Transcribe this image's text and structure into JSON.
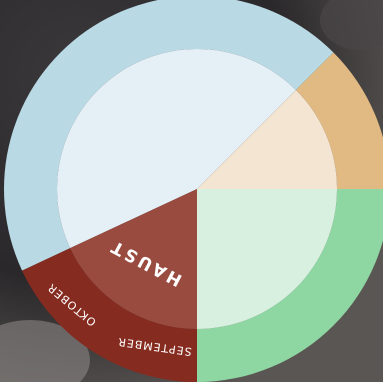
{
  "wheel": {
    "seasons": [
      {
        "id": "winter",
        "label": "",
        "inner_color": "#e4eff6",
        "outer_color": "#b9d9e4",
        "months": [
          "",
          "",
          ""
        ]
      },
      {
        "id": "spring",
        "label": "",
        "inner_color": "#f4e4d2",
        "outer_color": "#e1b982",
        "months": [
          "",
          "",
          ""
        ]
      },
      {
        "id": "summer",
        "label": "",
        "inner_color": "#d8f0e0",
        "outer_color": "#8ed6a2",
        "months": [
          "",
          "",
          ""
        ]
      },
      {
        "id": "autumn",
        "label": "HAUST",
        "inner_color": "#9a4b40",
        "outer_color": "#862b1f",
        "months": [
          "SEPTEMBER",
          "OKTOBER"
        ]
      }
    ]
  }
}
